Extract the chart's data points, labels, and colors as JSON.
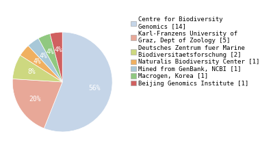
{
  "labels": [
    "Centre for Biodiversity\nGenomics [14]",
    "Karl-Franzens University of\nGraz, Dept of Zoology [5]",
    "Deutsches Zentrum fuer Marine\nBiodiversitaetsforschung [2]",
    "Naturalis Biodiversity Center [1]",
    "Mined from GenBank, NCBI [1]",
    "Macrogen, Korea [1]",
    "Beijing Genomics Institute [1]"
  ],
  "values": [
    14,
    5,
    2,
    1,
    1,
    1,
    1
  ],
  "colors": [
    "#c5d5e8",
    "#e8a898",
    "#cdd880",
    "#f0b060",
    "#a8c8d8",
    "#90c880",
    "#d06060"
  ],
  "autopct_labels": [
    "56%",
    "20%",
    "8%",
    "4%",
    "4%",
    "4%",
    "4%"
  ],
  "startangle": 90,
  "background_color": "#ffffff",
  "text_color": "#ffffff",
  "legend_fontsize": 6.5,
  "autopct_fontsize": 7.0
}
